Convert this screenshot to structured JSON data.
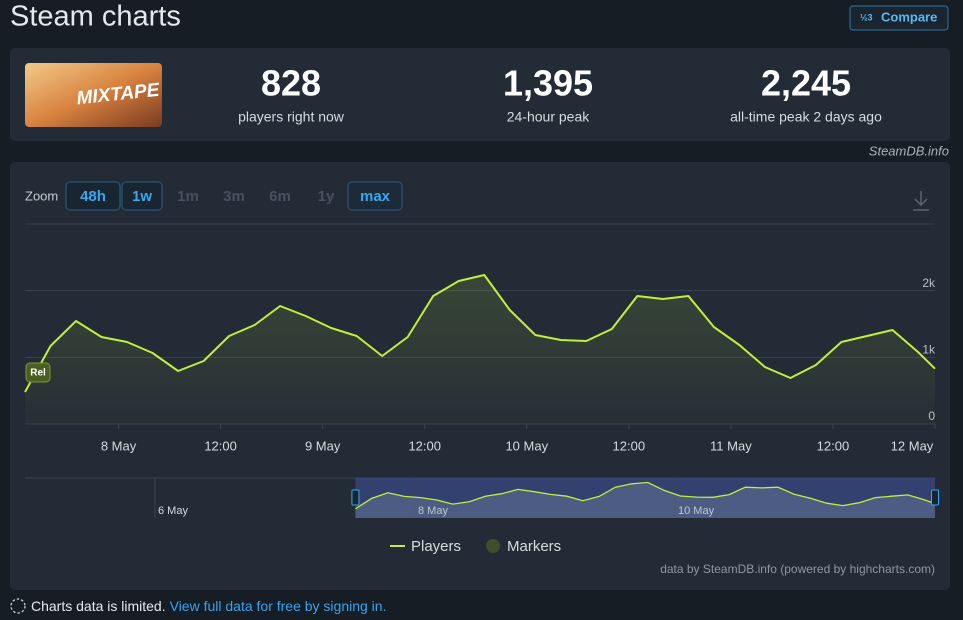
{
  "header": {
    "title": "Steam charts",
    "compare": "Compare"
  },
  "game": {
    "image_text": "MIXTAPE"
  },
  "stats": [
    {
      "value": "828",
      "label": "players right now"
    },
    {
      "value": "1,395",
      "label": "24-hour peak"
    },
    {
      "value": "2,245",
      "label": "all-time peak 2 days ago"
    }
  ],
  "source": "SteamDB.info",
  "zoom": {
    "label": "Zoom",
    "buttons": [
      {
        "label": "48h",
        "enabled": true
      },
      {
        "label": "1w",
        "enabled": true
      },
      {
        "label": "1m",
        "enabled": false
      },
      {
        "label": "3m",
        "enabled": false
      },
      {
        "label": "6m",
        "enabled": false
      },
      {
        "label": "1y",
        "enabled": false
      },
      {
        "label": "max",
        "enabled": true,
        "selected": true
      }
    ]
  },
  "chart_data": {
    "type": "line",
    "x": [
      "7 May 13:00",
      "7 May 16:00",
      "7 May 19:00",
      "7 May 22:00",
      "8 May 01:00",
      "8 May 04:00",
      "8 May 07:00",
      "8 May 10:00",
      "8 May 13:00",
      "8 May 16:00",
      "8 May 19:00",
      "8 May 22:00",
      "9 May 01:00",
      "9 May 04:00",
      "9 May 07:00",
      "9 May 10:00",
      "9 May 13:00",
      "9 May 16:00",
      "9 May 19:00",
      "9 May 22:00",
      "10 May 01:00",
      "10 May 04:00",
      "10 May 07:00",
      "10 May 10:00",
      "10 May 13:00",
      "10 May 16:00",
      "10 May 19:00",
      "10 May 22:00",
      "11 May 01:00",
      "11 May 04:00",
      "11 May 07:00",
      "11 May 10:00",
      "11 May 13:00",
      "11 May 16:00",
      "11 May 19:00",
      "11 May 22:00",
      "12 May 00:00"
    ],
    "series": [
      {
        "name": "Players",
        "color": "#bef03c",
        "values": [
          480,
          1170,
          1545,
          1305,
          1230,
          1065,
          795,
          945,
          1320,
          1485,
          1770,
          1620,
          1440,
          1320,
          1020,
          1305,
          1920,
          2145,
          2235,
          1710,
          1335,
          1260,
          1245,
          1425,
          1920,
          1875,
          1920,
          1455,
          1185,
          855,
          690,
          885,
          1230,
          1320,
          1410,
          1080,
          830
        ]
      }
    ],
    "markers": {
      "name": "Markers",
      "color": "#3e4f2a"
    },
    "annotations": [
      {
        "x": "7 May 13:00",
        "text": "Rel"
      }
    ],
    "xlim": [
      "7 May 13:00",
      "12 May 00:00"
    ],
    "xticks": [
      {
        "value": "8 May 00:00",
        "label": "8 May"
      },
      {
        "value": "8 May 12:00",
        "label": "12:00"
      },
      {
        "value": "9 May 00:00",
        "label": "9 May"
      },
      {
        "value": "9 May 12:00",
        "label": "12:00"
      },
      {
        "value": "10 May 00:00",
        "label": "10 May"
      },
      {
        "value": "10 May 12:00",
        "label": "12:00"
      },
      {
        "value": "11 May 00:00",
        "label": "11 May"
      },
      {
        "value": "11 May 12:00",
        "label": "12:00"
      },
      {
        "value": "12 May 00:00",
        "label": "12 May"
      }
    ],
    "ylim": [
      0,
      3000
    ],
    "yticks": [
      {
        "value": 0,
        "label": "0"
      },
      {
        "value": 1000,
        "label": "1k"
      },
      {
        "value": 2000,
        "label": "2k"
      }
    ],
    "grid": true,
    "navigator": {
      "xticks": [
        {
          "value": "6 May 00:00",
          "label": "6 May"
        },
        {
          "value": "8 May 00:00",
          "label": "8 May"
        },
        {
          "value": "10 May 00:00",
          "label": "10 May"
        }
      ]
    },
    "credit": "data by SteamDB.info (powered by highcharts.com)"
  },
  "footer": {
    "notice": "Charts data is limited.",
    "link": "View full data for free by signing in."
  }
}
